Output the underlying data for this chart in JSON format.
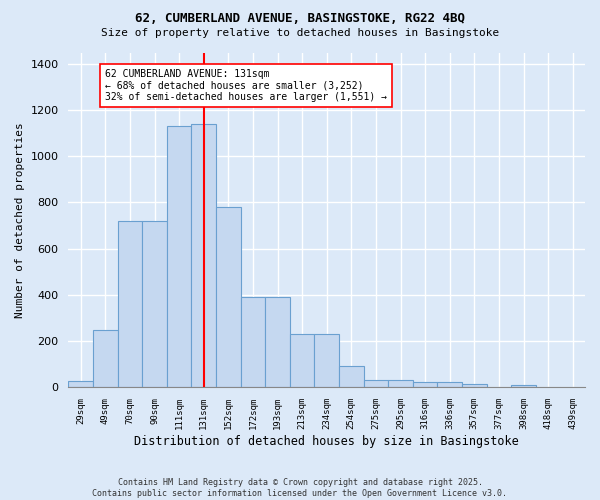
{
  "title1": "62, CUMBERLAND AVENUE, BASINGSTOKE, RG22 4BQ",
  "title2": "Size of property relative to detached houses in Basingstoke",
  "xlabel": "Distribution of detached houses by size in Basingstoke",
  "ylabel": "Number of detached properties",
  "categories": [
    "29sqm",
    "49sqm",
    "70sqm",
    "90sqm",
    "111sqm",
    "131sqm",
    "152sqm",
    "172sqm",
    "193sqm",
    "213sqm",
    "234sqm",
    "254sqm",
    "275sqm",
    "295sqm",
    "316sqm",
    "336sqm",
    "357sqm",
    "377sqm",
    "398sqm",
    "418sqm",
    "439sqm"
  ],
  "values": [
    25,
    245,
    720,
    720,
    1130,
    1140,
    780,
    390,
    390,
    230,
    230,
    90,
    30,
    30,
    20,
    20,
    15,
    0,
    10,
    0,
    0
  ],
  "bar_color": "#c5d8f0",
  "bar_edge_color": "#6aa0d0",
  "vline_x_index": 5,
  "vline_color": "red",
  "annotation_text": "62 CUMBERLAND AVENUE: 131sqm\n← 68% of detached houses are smaller (3,252)\n32% of semi-detached houses are larger (1,551) →",
  "annotation_box_color": "white",
  "annotation_box_edge_color": "red",
  "ylim": [
    0,
    1450
  ],
  "footer1": "Contains HM Land Registry data © Crown copyright and database right 2025.",
  "footer2": "Contains public sector information licensed under the Open Government Licence v3.0.",
  "bg_color": "#dce9f8",
  "grid_color": "#ffffff",
  "ax_bg_color": "#dce9f8"
}
